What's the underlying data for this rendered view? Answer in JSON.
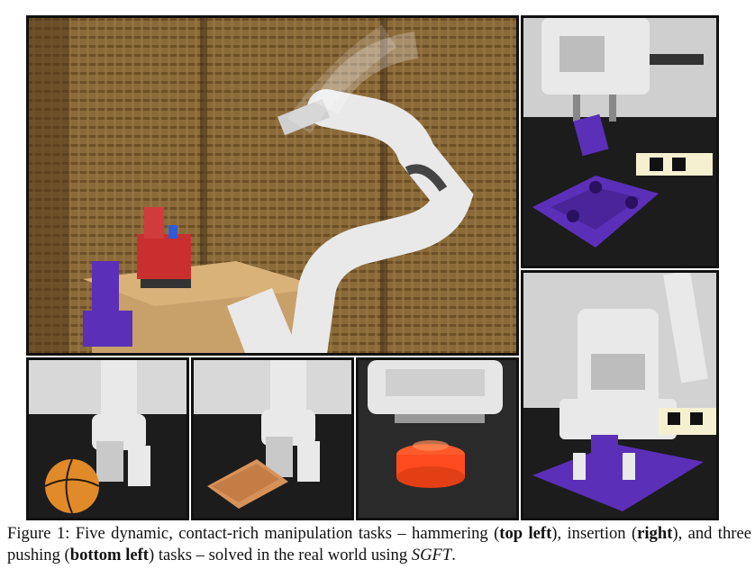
{
  "figure": {
    "caption": {
      "label": "Figure 1:",
      "part1": " Five dynamic, contact-rich manipulation tasks – hammering (",
      "bold1": "top left",
      "part2": "), insertion (",
      "bold2": "right",
      "part3": "), and three pushing (",
      "bold3": "bottom left",
      "part4": ") tasks – solved in the real world using ",
      "method": "SGFT",
      "end": "."
    },
    "panels": [
      {
        "id": "hammering",
        "content": "robot arm swinging a hammer at a peg on a wooden stand in front of a woven screen"
      },
      {
        "id": "insertion-top",
        "content": "gripper holding a purple peg above a purple tray with holes"
      },
      {
        "id": "insertion-bottom",
        "content": "gripper inserting a purple peg into the purple tray"
      },
      {
        "id": "pushing-ball",
        "content": "gripper pushing a basketball-patterned ball"
      },
      {
        "id": "pushing-towel",
        "content": "gripper pushing a folded orange towel"
      },
      {
        "id": "pushing-puck",
        "content": "gripper pushing a red-orange puck"
      }
    ],
    "colors": {
      "purple": "#5b2fb8",
      "wood": "#7a5a2e",
      "robot_white": "#e9e9e9",
      "table_black": "#1c1c1c"
    }
  }
}
